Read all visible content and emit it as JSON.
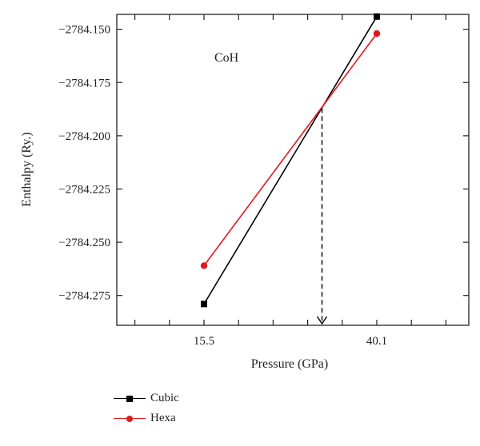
{
  "chart_data": {
    "type": "line",
    "title": "CoH",
    "xlabel": "Pressure (GPa)",
    "ylabel": "Enthalpy (Ry.)",
    "x_categories": [
      "15.5",
      "40.1"
    ],
    "y_ticks": [
      "−2784.150",
      "−2784.175",
      "−2784.200",
      "−2784.225",
      "−2784.250",
      "−2784.275"
    ],
    "ylim": [
      -2784.289,
      -2784.143
    ],
    "series": [
      {
        "name": "Cubic",
        "x": [
          15.5,
          40.1
        ],
        "y": [
          -2784.279,
          -2784.144
        ],
        "color": "#000000",
        "marker": "square"
      },
      {
        "name": "Hexa",
        "x": [
          15.5,
          40.1
        ],
        "y": [
          -2784.261,
          -2784.152
        ],
        "color": "#e0191f",
        "marker": "circle"
      }
    ],
    "annotation": {
      "type": "dashed-arrow-down",
      "x": 32.3,
      "from_y": -2784.187
    },
    "grid": false,
    "legend_position": "bottom-left"
  }
}
